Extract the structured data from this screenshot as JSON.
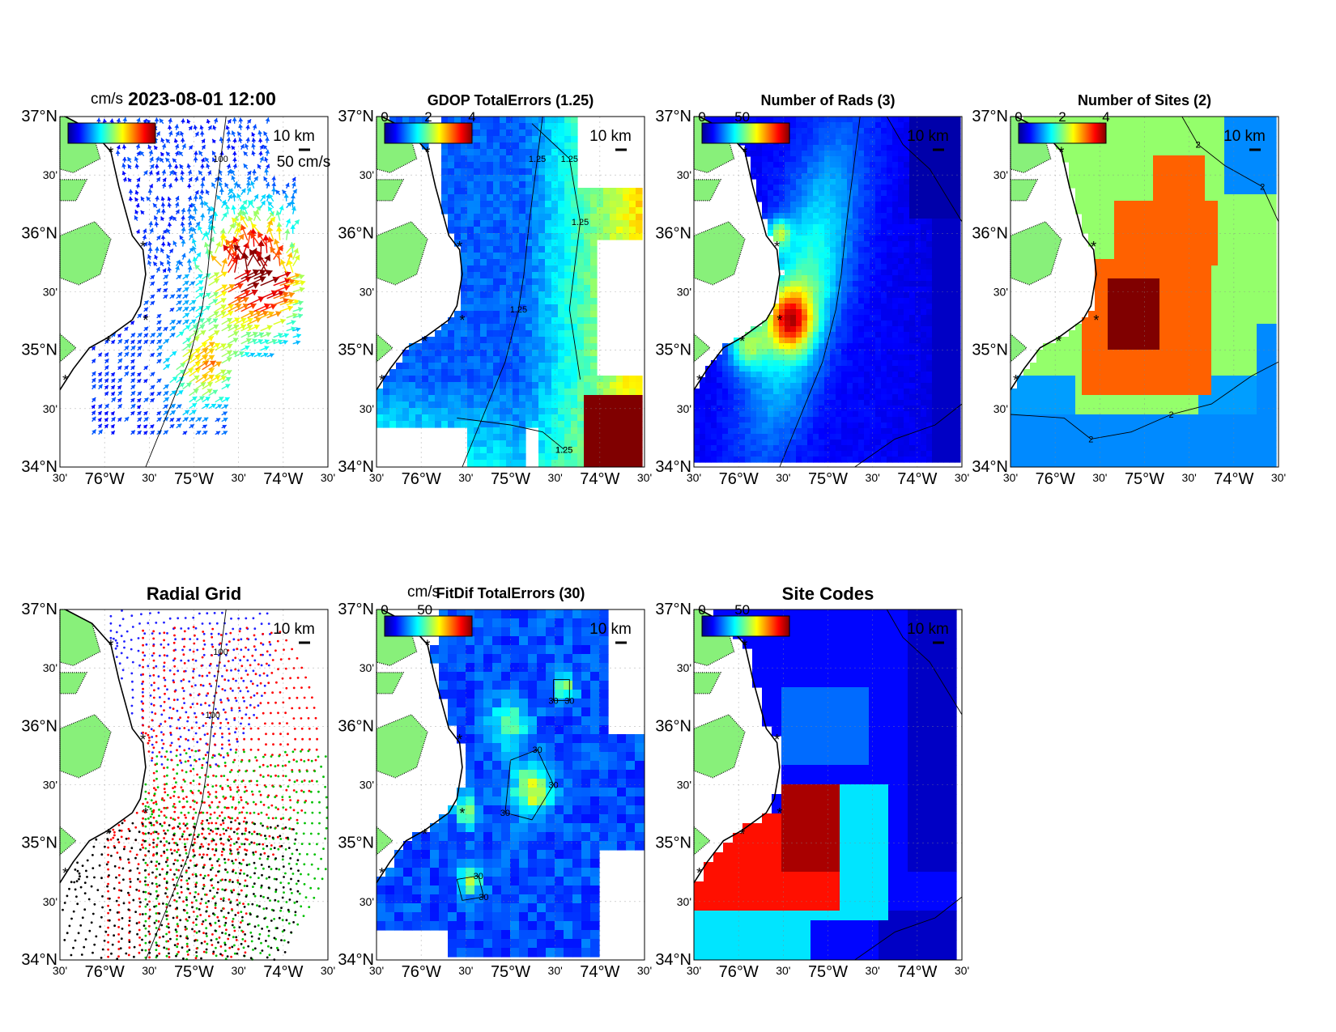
{
  "figure": {
    "timestamp": "2023-08-01 12:00",
    "axis_labels": {
      "lat": [
        "37°N",
        "30'",
        "36°N",
        "30'",
        "35°N",
        "30'",
        "34°N"
      ],
      "lon": [
        "30'",
        "76°W",
        "30'",
        "75°W",
        "30'",
        "74°W",
        "30'"
      ]
    },
    "scale_bar_label": "10 km",
    "coast_color": "#88f07a",
    "site_marker_color": "#ff2020",
    "panels": [
      {
        "id": "total-currents",
        "title": "2023-08-01 12:00",
        "colorbar": {
          "unit": "cm/s",
          "ticks": []
        },
        "reference_arrow": "50 cm/s",
        "contours": [
          "100"
        ]
      },
      {
        "id": "gdop-total-errors",
        "title": "GDOP TotalErrors (1.25)",
        "colorbar": {
          "unit": "",
          "ticks": [
            "0",
            "2",
            "4"
          ]
        },
        "contours": [
          "1.25",
          "1.25",
          "1.25",
          "1.25",
          "1.25",
          "1.25"
        ]
      },
      {
        "id": "number-of-rads",
        "title": "Number of Rads (3)",
        "colorbar": {
          "unit": "",
          "ticks": [
            "0",
            "50"
          ]
        },
        "contours": []
      },
      {
        "id": "number-of-sites",
        "title": "Number of Sites (2)",
        "colorbar": {
          "unit": "",
          "ticks": [
            "0",
            "2",
            "4"
          ]
        },
        "contours": [
          "2",
          "2",
          "2",
          "2",
          "2"
        ]
      },
      {
        "id": "radial-grid",
        "title": "Radial Grid",
        "colorbar": null,
        "contours": [
          "100",
          "100"
        ]
      },
      {
        "id": "fitdif-total-errors",
        "title": "FitDif TotalErrors (30)",
        "colorbar": {
          "unit": "cm/s",
          "ticks": [
            "0",
            "50"
          ]
        },
        "contours": [
          "30",
          "30",
          "30",
          "30",
          "30",
          "30",
          "30"
        ]
      },
      {
        "id": "site-codes",
        "title": "Site Codes",
        "colorbar": {
          "unit": "",
          "ticks": [
            "0",
            "50"
          ]
        },
        "contours": []
      }
    ]
  }
}
